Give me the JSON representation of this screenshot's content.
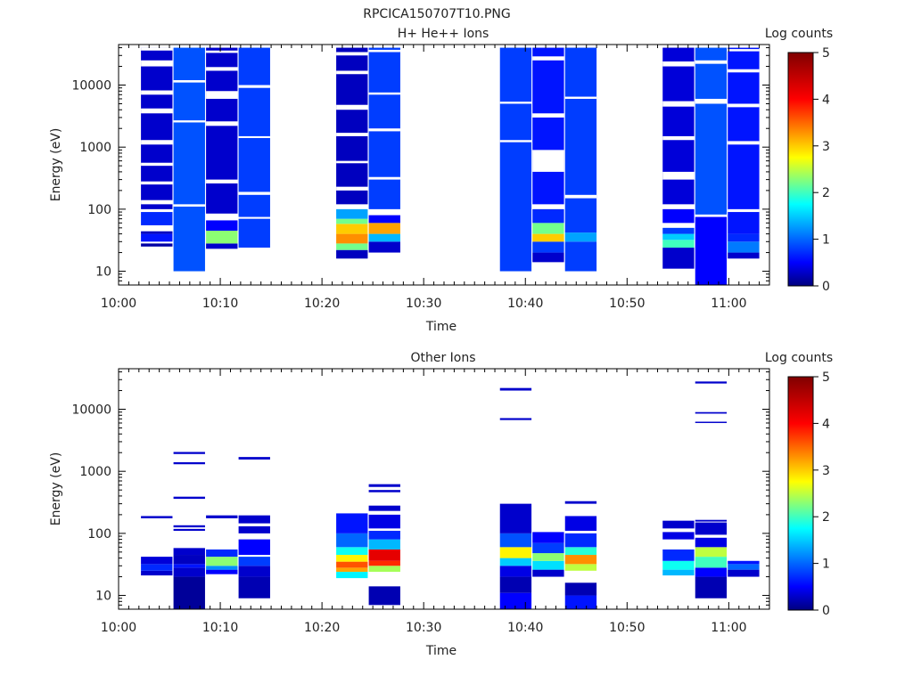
{
  "window_title": "RPCICA150707T10.PNG",
  "colorbar_label": "Log counts",
  "colorbar_ticks": [
    "0",
    "1",
    "2",
    "3",
    "4",
    "5"
  ],
  "colorbar_stops": [
    "#00008f",
    "#0000ff",
    "#00ffff",
    "#ffff00",
    "#ff0000",
    "#800000"
  ],
  "ytick_labels": [
    "10",
    "100",
    "1000",
    "10000"
  ],
  "xtick_labels": [
    "10:00",
    "10:10",
    "10:20",
    "10:30",
    "10:40",
    "10:50",
    "11:00"
  ],
  "chart_data": [
    {
      "type": "heatmap",
      "title": "H+ He++ Ions",
      "xlabel": "Time",
      "ylabel": "Energy (eV)",
      "ylog": true,
      "xlim_min": [
        0,
        64
      ],
      "ylim": [
        6,
        45000
      ],
      "zlim": [
        0,
        5
      ],
      "columns": [
        {
          "t0": 2.2,
          "t1": 5.3,
          "segments": [
            [
              25,
              28,
              0.15
            ],
            [
              30,
              40,
              0.6
            ],
            [
              40,
              44,
              0.25
            ],
            [
              55,
              90,
              0.7
            ],
            [
              100,
              40000,
              0.3
            ]
          ],
          "gaps": [
            [
              120,
              140
            ],
            [
              250,
              280
            ],
            [
              500,
              560
            ],
            [
              1100,
              1300
            ],
            [
              3500,
              4200
            ],
            [
              7000,
              8200
            ],
            [
              20000,
              25000
            ],
            [
              36000,
              40000
            ]
          ]
        },
        {
          "t0": 5.4,
          "t1": 8.5,
          "segments": [
            [
              10,
              40000,
              0.9
            ]
          ],
          "gaps": [
            [
              110,
              120
            ],
            [
              2500,
              2700
            ],
            [
              11000,
              12000
            ]
          ]
        },
        {
          "t0": 8.6,
          "t1": 11.7,
          "segments": [
            [
              23,
              28,
              0.3
            ],
            [
              28,
              45,
              2.3
            ],
            [
              45,
              66,
              0.5
            ],
            [
              85,
              40000,
              0.3
            ]
          ],
          "gaps": [
            [
              260,
              300
            ],
            [
              2200,
              2600
            ],
            [
              6000,
              8000
            ],
            [
              17000,
              19500
            ],
            [
              33000,
              36000
            ]
          ]
        },
        {
          "t0": 11.8,
          "t1": 14.9,
          "segments": [
            [
              24,
              70,
              0.8
            ],
            [
              75,
              40000,
              0.8
            ]
          ],
          "gaps": [
            [
              170,
              190
            ],
            [
              1400,
              1500
            ],
            [
              9000,
              10000
            ]
          ]
        },
        {
          "t0": 21.4,
          "t1": 24.5,
          "segments": [
            [
              16,
              22,
              0.25
            ],
            [
              22,
              28,
              2.2
            ],
            [
              28,
              40,
              3.3
            ],
            [
              40,
              58,
              3.0
            ],
            [
              58,
              70,
              2.2
            ],
            [
              70,
              100,
              1.3
            ],
            [
              120,
              40000,
              0.25
            ]
          ],
          "gaps": [
            [
              200,
              230
            ],
            [
              550,
              600
            ],
            [
              1500,
              1700
            ],
            [
              4000,
              4800
            ],
            [
              15000,
              17000
            ],
            [
              30000,
              34000
            ]
          ]
        },
        {
          "t0": 24.6,
          "t1": 27.7,
          "segments": [
            [
              20,
              30,
              0.3
            ],
            [
              30,
              40,
              1.4
            ],
            [
              40,
              60,
              3.2
            ],
            [
              60,
              80,
              0.5
            ],
            [
              100,
              40000,
              0.8
            ]
          ],
          "gaps": [
            [
              300,
              330
            ],
            [
              1800,
              2000
            ],
            [
              7000,
              7600
            ],
            [
              34000,
              37000
            ]
          ]
        },
        {
          "t0": 37.5,
          "t1": 40.6,
          "segments": [
            [
              10,
              40000,
              0.8
            ]
          ],
          "gaps": [
            [
              1200,
              1300
            ],
            [
              5000,
              5400
            ]
          ]
        },
        {
          "t0": 40.7,
          "t1": 43.8,
          "segments": [
            [
              14,
              20,
              0.3
            ],
            [
              20,
              30,
              0.8
            ],
            [
              30,
              40,
              3.0
            ],
            [
              40,
              60,
              2.2
            ],
            [
              60,
              100,
              0.7
            ],
            [
              120,
              40000,
              0.6
            ]
          ],
          "gaps": [
            [
              400,
              900
            ],
            [
              3000,
              3500
            ],
            [
              25000,
              29000
            ]
          ]
        },
        {
          "t0": 43.9,
          "t1": 47.0,
          "segments": [
            [
              10,
              30,
              0.8
            ],
            [
              30,
              42,
              1.3
            ],
            [
              42,
              40000,
              0.8
            ]
          ],
          "gaps": [
            [
              150,
              170
            ],
            [
              6000,
              6500
            ]
          ]
        },
        {
          "t0": 53.5,
          "t1": 56.6,
          "segments": [
            [
              11,
              24,
              0.3
            ],
            [
              24,
              32,
              2.0
            ],
            [
              32,
              40,
              1.5
            ],
            [
              40,
              50,
              0.8
            ],
            [
              60,
              100,
              0.5
            ],
            [
              120,
              40000,
              0.35
            ]
          ],
          "gaps": [
            [
              300,
              400
            ],
            [
              1300,
              1500
            ],
            [
              4500,
              5500
            ],
            [
              20000,
              24000
            ]
          ]
        },
        {
          "t0": 56.7,
          "t1": 59.8,
          "segments": [
            [
              6,
              75,
              0.5
            ],
            [
              82,
              40000,
              0.9
            ]
          ],
          "gaps": [
            [
              5000,
              6000
            ],
            [
              22000,
              25000
            ]
          ]
        },
        {
          "t0": 59.9,
          "t1": 63.0,
          "segments": [
            [
              16,
              20,
              0.3
            ],
            [
              20,
              30,
              1.1
            ],
            [
              30,
              40,
              0.7
            ],
            [
              40,
              40000,
              0.6
            ]
          ],
          "gaps": [
            [
              90,
              100
            ],
            [
              1100,
              1250
            ],
            [
              4400,
              5000
            ],
            [
              16000,
              18000
            ],
            [
              35000,
              38000
            ]
          ]
        }
      ]
    },
    {
      "type": "heatmap",
      "title": "Other Ions",
      "xlabel": "Time",
      "ylabel": "Energy (eV)",
      "ylog": true,
      "xlim_min": [
        0,
        64
      ],
      "ylim": [
        6,
        45000
      ],
      "zlim": [
        0,
        5
      ],
      "columns": [
        {
          "t0": 2.2,
          "t1": 5.3,
          "segments": [
            [
              21,
              25,
              0.3
            ],
            [
              25,
              32,
              0.7
            ],
            [
              32,
              42,
              0.35
            ],
            [
              175,
              190,
              0.3
            ]
          ],
          "gaps": []
        },
        {
          "t0": 5.4,
          "t1": 8.5,
          "segments": [
            [
              6,
              20,
              0.1
            ],
            [
              20,
              28,
              0.3
            ],
            [
              28,
              32,
              0.6
            ],
            [
              32,
              45,
              0.25
            ],
            [
              45,
              58,
              0.3
            ],
            [
              110,
              118,
              0.3
            ],
            [
              125,
              135,
              0.3
            ],
            [
              360,
              390,
              0.3
            ],
            [
              1300,
              1400,
              0.3
            ],
            [
              1900,
              2050,
              0.3
            ]
          ],
          "gaps": []
        },
        {
          "t0": 8.6,
          "t1": 11.7,
          "segments": [
            [
              22,
              26,
              0.5
            ],
            [
              26,
              30,
              1.2
            ],
            [
              30,
              42,
              2.3
            ],
            [
              42,
              55,
              0.7
            ],
            [
              175,
              195,
              0.3
            ]
          ],
          "gaps": []
        },
        {
          "t0": 11.8,
          "t1": 14.9,
          "segments": [
            [
              9,
              20,
              0.2
            ],
            [
              20,
              30,
              0.3
            ],
            [
              30,
              42,
              0.8
            ],
            [
              45,
              80,
              0.5
            ],
            [
              100,
              130,
              0.3
            ],
            [
              145,
              195,
              0.3
            ],
            [
              1550,
              1700,
              0.3
            ]
          ],
          "gaps": []
        },
        {
          "t0": 21.4,
          "t1": 24.5,
          "segments": [
            [
              19,
              24,
              1.7
            ],
            [
              24,
              28,
              3.2
            ],
            [
              28,
              35,
              3.6
            ],
            [
              35,
              45,
              2.8
            ],
            [
              45,
              60,
              1.8
            ],
            [
              60,
              100,
              1.0
            ],
            [
              100,
              210,
              0.6
            ]
          ],
          "gaps": []
        },
        {
          "t0": 24.6,
          "t1": 27.7,
          "segments": [
            [
              7,
              14,
              0.2
            ],
            [
              24,
              30,
              2.4
            ],
            [
              30,
              36,
              3.8
            ],
            [
              36,
              55,
              4.2
            ],
            [
              55,
              80,
              1.4
            ],
            [
              80,
              110,
              0.7
            ],
            [
              120,
              200,
              0.4
            ],
            [
              230,
              280,
              0.3
            ],
            [
              460,
              500,
              0.3
            ],
            [
              560,
              620,
              0.3
            ]
          ],
          "gaps": []
        },
        {
          "t0": 37.5,
          "t1": 40.6,
          "segments": [
            [
              6,
              11,
              0.5
            ],
            [
              11,
              20,
              0.2
            ],
            [
              20,
              30,
              0.4
            ],
            [
              30,
              40,
              1.5
            ],
            [
              40,
              60,
              2.8
            ],
            [
              60,
              100,
              0.9
            ],
            [
              100,
              300,
              0.3
            ],
            [
              6700,
              7200,
              0.3
            ],
            [
              20000,
              22000,
              0.3
            ]
          ],
          "gaps": []
        },
        {
          "t0": 40.7,
          "t1": 43.8,
          "segments": [
            [
              20,
              26,
              0.3
            ],
            [
              26,
              36,
              1.6
            ],
            [
              36,
              48,
              2.3
            ],
            [
              48,
              70,
              0.8
            ],
            [
              70,
              105,
              0.5
            ]
          ],
          "gaps": []
        },
        {
          "t0": 43.9,
          "t1": 47.0,
          "segments": [
            [
              6,
              10,
              0.6
            ],
            [
              10,
              16,
              0.2
            ],
            [
              25,
              32,
              2.5
            ],
            [
              32,
              45,
              3.3
            ],
            [
              45,
              60,
              1.9
            ],
            [
              60,
              100,
              0.7
            ],
            [
              110,
              190,
              0.4
            ],
            [
              300,
              330,
              0.3
            ]
          ],
          "gaps": []
        },
        {
          "t0": 53.5,
          "t1": 56.6,
          "segments": [
            [
              21,
              26,
              1.4
            ],
            [
              26,
              36,
              1.8
            ],
            [
              36,
              55,
              0.7
            ],
            [
              80,
              105,
              0.4
            ],
            [
              120,
              160,
              0.3
            ]
          ],
          "gaps": []
        },
        {
          "t0": 56.7,
          "t1": 59.8,
          "segments": [
            [
              9,
              20,
              0.2
            ],
            [
              20,
              28,
              0.5
            ],
            [
              28,
              42,
              2.0
            ],
            [
              42,
              60,
              2.5
            ],
            [
              60,
              85,
              0.4
            ],
            [
              95,
              150,
              0.3
            ],
            [
              155,
              165,
              0.3
            ],
            [
              6000,
              6300,
              0.3
            ],
            [
              8500,
              9000,
              0.3
            ],
            [
              26000,
              28000,
              0.3
            ]
          ],
          "gaps": []
        },
        {
          "t0": 59.9,
          "t1": 63.0,
          "segments": [
            [
              20,
              26,
              0.3
            ],
            [
              26,
              32,
              1.0
            ],
            [
              32,
              36,
              0.6
            ]
          ],
          "gaps": []
        }
      ]
    }
  ]
}
